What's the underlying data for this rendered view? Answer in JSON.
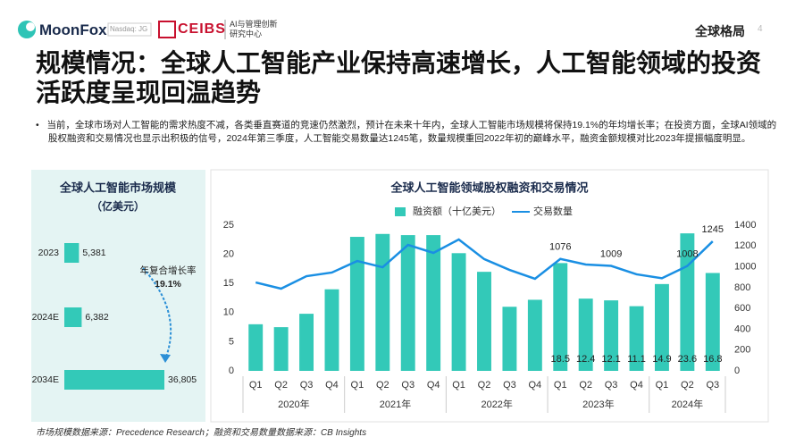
{
  "header": {
    "logo": "MoonFox",
    "ticker": "Nasdaq: JG",
    "partner": "CEIBS",
    "partner_unit": [
      "AI与管理创新",
      "研究中心"
    ],
    "section": "全球格局",
    "page": "4"
  },
  "title": "规模情况：全球人工智能产业保持高速增长，人工智能领域的投资活跃度呈现回温趋势",
  "bullet": "当前，全球市场对人工智能的需求热度不减，各类垂直赛道的竞速仍然激烈，预计在未来十年内，全球人工智能市场规模将保持19.1%的年均增长率；在投资方面，全球AI领域的股权融资和交易情况也显示出积极的信号，2024年第三季度，人工智能交易数量达1245笔，数量规模重回2022年初的巅峰水平，融资金额规模对比2023年提振幅度明显。",
  "footer": "市场规模数据来源：Precedence Research；融资和交易数量数据来源：CB Insights",
  "chart_data": [
    {
      "type": "hbar",
      "title": "全球人工智能市场规模",
      "subtitle": "（亿美元）",
      "categories": [
        "2023",
        "2024E",
        "2034E"
      ],
      "values": [
        5381,
        6382,
        36805
      ],
      "value_labels": [
        "5,381",
        "6,382",
        "36,805"
      ],
      "color": "#33c9b8",
      "annotation": [
        "年复合增长率",
        "19.1%"
      ]
    },
    {
      "type": "bar_line",
      "title": "全球人工智能领域股权融资和交易情况",
      "categories": [
        "Q1",
        "Q2",
        "Q3",
        "Q4",
        "Q1",
        "Q2",
        "Q3",
        "Q4",
        "Q1",
        "Q2",
        "Q3",
        "Q4",
        "Q1",
        "Q2",
        "Q3",
        "Q4",
        "Q1",
        "Q2",
        "Q3"
      ],
      "category_groups": [
        {
          "label": "2020年",
          "size": 4
        },
        {
          "label": "2021年",
          "size": 4
        },
        {
          "label": "2022年",
          "size": 4
        },
        {
          "label": "2023年",
          "size": 4
        },
        {
          "label": "2024年",
          "size": 3
        }
      ],
      "ylim": [
        0,
        25
      ],
      "yticks": [
        0,
        5,
        10,
        15,
        20,
        25
      ],
      "y2lim": [
        0,
        1400
      ],
      "y2ticks": [
        0,
        200,
        400,
        600,
        800,
        1000,
        1200,
        1400
      ],
      "series": [
        {
          "name": "融资额（十亿美元）",
          "color": "#33c9b8",
          "kind": "bar",
          "values": [
            8,
            7.5,
            9.8,
            14,
            23,
            23.5,
            23.3,
            23.3,
            20.2,
            17,
            11,
            12.2,
            18.5,
            12.4,
            12.1,
            11.1,
            14.9,
            23.6,
            16.8
          ],
          "value_labels": [
            null,
            null,
            null,
            null,
            null,
            null,
            null,
            null,
            null,
            null,
            null,
            null,
            "18.5",
            "12.4",
            "12.1",
            "11.1",
            "14.9",
            "23.6",
            "16.8"
          ]
        },
        {
          "name": "交易数量",
          "color": "#1a8fe3",
          "kind": "line",
          "axis": "y2",
          "values": [
            850,
            790,
            910,
            945,
            1056,
            996,
            1211,
            1134,
            1263,
            1074,
            970,
            885,
            1076,
            1022,
            1009,
            928,
            890,
            1008,
            1245
          ],
          "value_labels": [
            null,
            null,
            null,
            null,
            null,
            null,
            null,
            null,
            null,
            null,
            null,
            null,
            "1076",
            null,
            "1009",
            null,
            null,
            "1008",
            "1245"
          ]
        }
      ]
    }
  ]
}
